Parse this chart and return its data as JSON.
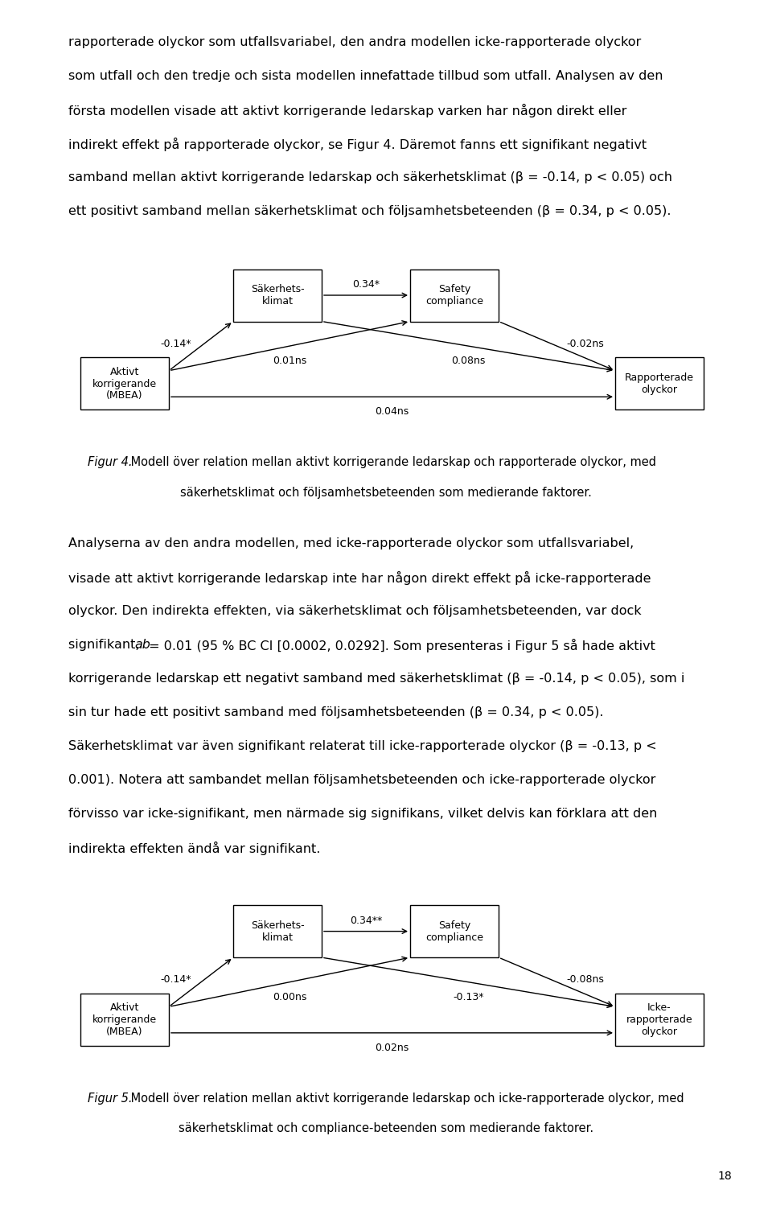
{
  "background": "#ffffff",
  "text_color": "#000000",
  "page_width": 9.6,
  "page_height": 15.09,
  "top_paragraphs": [
    "rapporterade olyckor som utfallsvariabel, den andra modellen icke-rapporterade olyckor",
    "som utfall och den tredje och sista modellen innefattade tillbud som utfall. Analysen av den",
    "första modellen visade att aktivt korrigerande ledarskap varken har någon direkt eller",
    "indirekt effekt på rapporterade olyckor, se Figur 4. Däremot fanns ett signifikant negativt",
    "samband mellan aktivt korrigerande ledarskap och säkerhetsklimat (β = -0.14, p < 0.05) och",
    "ett positivt samband mellan säkerhetsklimat och följsamhetsbeteenden (β = 0.34, p < 0.05)."
  ],
  "fig4_caption_italic": "Figur 4.",
  "fig4_caption_normal": " Modell över relation mellan aktivt korrigerande ledarskap och rapporterade olyckor, med",
  "fig4_caption_line2": "säkerhetsklimat och följsamhetsbeteenden som medierande faktorer.",
  "middle_paragraphs_pre": [
    "Analyserna av den andra modellen, med icke-rapporterade olyckor som utfallsvariabel,",
    "visade att aktivt korrigerande ledarskap inte har någon direkt effekt på icke-rapporterade",
    "olyckor. Den indirekta effekten, via säkerhetsklimat och följsamhetsbeteenden, var dock"
  ],
  "middle_ab_before": "signifikant, ",
  "middle_ab_after": " = 0.01 (95 % BC CI [0.0002, 0.0292]. Som presenteras i Figur 5 så hade aktivt",
  "middle_paragraphs_post": [
    "korrigerande ledarskap ett negativt samband med säkerhetsklimat (β = -0.14, p < 0.05), som i",
    "sin tur hade ett positivt samband med följsamhetsbeteenden (β = 0.34, p < 0.05).",
    "Säkerhetsklimat var även signifikant relaterat till icke-rapporterade olyckor (β = -0.13, p <",
    "0.001). Notera att sambandet mellan följsamhetsbeteenden och icke-rapporterade olyckor",
    "förvisso var icke-signifikant, men närmade sig signifikans, vilket delvis kan förklara att den",
    "indirekta effekten ändå var signifikant."
  ],
  "fig5_caption_italic": "Figur 5.",
  "fig5_caption_normal": " Modell över relation mellan aktivt korrigerande ledarskap och icke-rapporterade olyckor, med",
  "fig5_caption_line2": "säkerhetsklimat och compliance-beteenden som medierande faktorer.",
  "page_number": "18",
  "fig4": {
    "box_left_label": "Aktivt\nkorrigerande\n(MBEA)",
    "box_mid1_label": "Säkerhets-\nklimat",
    "box_mid2_label": "Safety\ncompliance",
    "box_right_label": "Rapporterade\nolyckor",
    "arrow_top": "0.34*",
    "arrow_left_upper": "-0.14*",
    "arrow_right_upper": "-0.02ns",
    "arrow_mid_left": "0.01ns",
    "arrow_mid_right": "0.08ns",
    "arrow_bottom": "0.04ns"
  },
  "fig5": {
    "box_left_label": "Aktivt\nkorrigerande\n(MBEA)",
    "box_mid1_label": "Säkerhets-\nklimat",
    "box_mid2_label": "Safety\ncompliance",
    "box_right_label": "Icke-\nrapporterade\nolyckor",
    "arrow_top": "0.34**",
    "arrow_left_upper": "-0.14*",
    "arrow_right_upper": "-0.08ns",
    "arrow_mid_left": "0.00ns",
    "arrow_mid_right": "-0.13*",
    "arrow_bottom": "0.02ns"
  }
}
